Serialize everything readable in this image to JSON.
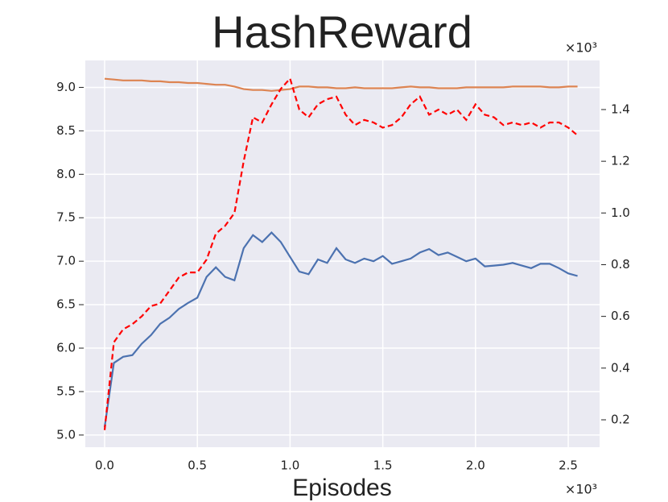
{
  "chart_data": {
    "type": "line",
    "title": "HashReward",
    "x_label": "Episodes",
    "x_offset": "×10³",
    "y2_offset": "×10³",
    "x": [
      0,
      0.05,
      0.1,
      0.15,
      0.2,
      0.25,
      0.3,
      0.35,
      0.4,
      0.45,
      0.5,
      0.55,
      0.6,
      0.65,
      0.7,
      0.75,
      0.8,
      0.85,
      0.9,
      0.95,
      1.0,
      1.05,
      1.1,
      1.15,
      1.2,
      1.25,
      1.3,
      1.35,
      1.4,
      1.45,
      1.5,
      1.55,
      1.6,
      1.65,
      1.7,
      1.75,
      1.8,
      1.85,
      1.9,
      1.95,
      2.0,
      2.05,
      2.1,
      2.15,
      2.2,
      2.25,
      2.3,
      2.35,
      2.4,
      2.45,
      2.5,
      2.55
    ],
    "series": [
      {
        "color": "#4c72b0",
        "linestyle": "solid",
        "values": [
          5.09,
          5.83,
          5.9,
          5.92,
          6.05,
          6.15,
          6.28,
          6.35,
          6.45,
          6.52,
          6.58,
          6.82,
          6.93,
          6.82,
          6.78,
          7.15,
          7.3,
          7.22,
          7.33,
          7.22,
          7.05,
          6.88,
          6.85,
          7.02,
          6.98,
          7.15,
          7.02,
          6.98,
          7.03,
          7.0,
          7.06,
          6.97,
          7.0,
          7.03,
          7.1,
          7.14,
          7.07,
          7.1,
          7.05,
          7.0,
          7.03,
          6.94,
          6.95,
          6.96,
          6.98,
          6.95,
          6.92,
          6.97,
          6.97,
          6.92,
          6.86,
          6.83
        ]
      },
      {
        "color": "#dd8452",
        "linestyle": "solid",
        "values": [
          9.1,
          9.09,
          9.08,
          9.08,
          9.08,
          9.07,
          9.07,
          9.06,
          9.06,
          9.05,
          9.05,
          9.04,
          9.03,
          9.03,
          9.01,
          8.98,
          8.97,
          8.97,
          8.96,
          8.97,
          8.98,
          9.01,
          9.01,
          9.0,
          9.0,
          8.99,
          8.99,
          9.0,
          8.99,
          8.99,
          8.99,
          8.99,
          9.0,
          9.01,
          9.0,
          9.0,
          8.99,
          8.99,
          8.99,
          9.0,
          9.0,
          9.0,
          9.0,
          9.0,
          9.01,
          9.01,
          9.01,
          9.01,
          9.0,
          9.0,
          9.01,
          9.01
        ]
      },
      {
        "color": "#ff0000",
        "linestyle": "dashed",
        "axis": "y2",
        "values": [
          0.16,
          0.5,
          0.55,
          0.57,
          0.6,
          0.64,
          0.65,
          0.7,
          0.75,
          0.77,
          0.77,
          0.82,
          0.92,
          0.95,
          1.0,
          1.2,
          1.37,
          1.35,
          1.42,
          1.48,
          1.52,
          1.4,
          1.37,
          1.42,
          1.44,
          1.45,
          1.38,
          1.34,
          1.36,
          1.35,
          1.33,
          1.34,
          1.37,
          1.42,
          1.45,
          1.38,
          1.4,
          1.38,
          1.4,
          1.36,
          1.42,
          1.38,
          1.37,
          1.34,
          1.35,
          1.34,
          1.35,
          1.33,
          1.35,
          1.35,
          1.33,
          1.3
        ]
      }
    ],
    "xlim": [
      -0.104,
      2.669
    ],
    "xticks": [
      {
        "value": 0,
        "label": "0.0"
      },
      0.5,
      {
        "value": 1,
        "label": "1.0"
      },
      1.5,
      {
        "value": 2,
        "label": "2.0"
      },
      2.5
    ],
    "ylim": [
      4.86,
      9.31
    ],
    "yticks": [
      {
        "value": 5,
        "label": "5.0"
      },
      5.5,
      {
        "value": 6,
        "label": "6.0"
      },
      6.5,
      {
        "value": 7,
        "label": "7.0"
      },
      7.5,
      {
        "value": 8,
        "label": "8.0"
      },
      8.5,
      {
        "value": 9,
        "label": "9.0"
      }
    ],
    "y2lim": [
      0.094,
      1.59
    ],
    "y2ticks": [
      0.2,
      0.4,
      0.6,
      0.8,
      {
        "value": 1,
        "label": "1.0"
      },
      1.2,
      1.4
    ],
    "grid": true,
    "background": "#eaeaf2"
  }
}
